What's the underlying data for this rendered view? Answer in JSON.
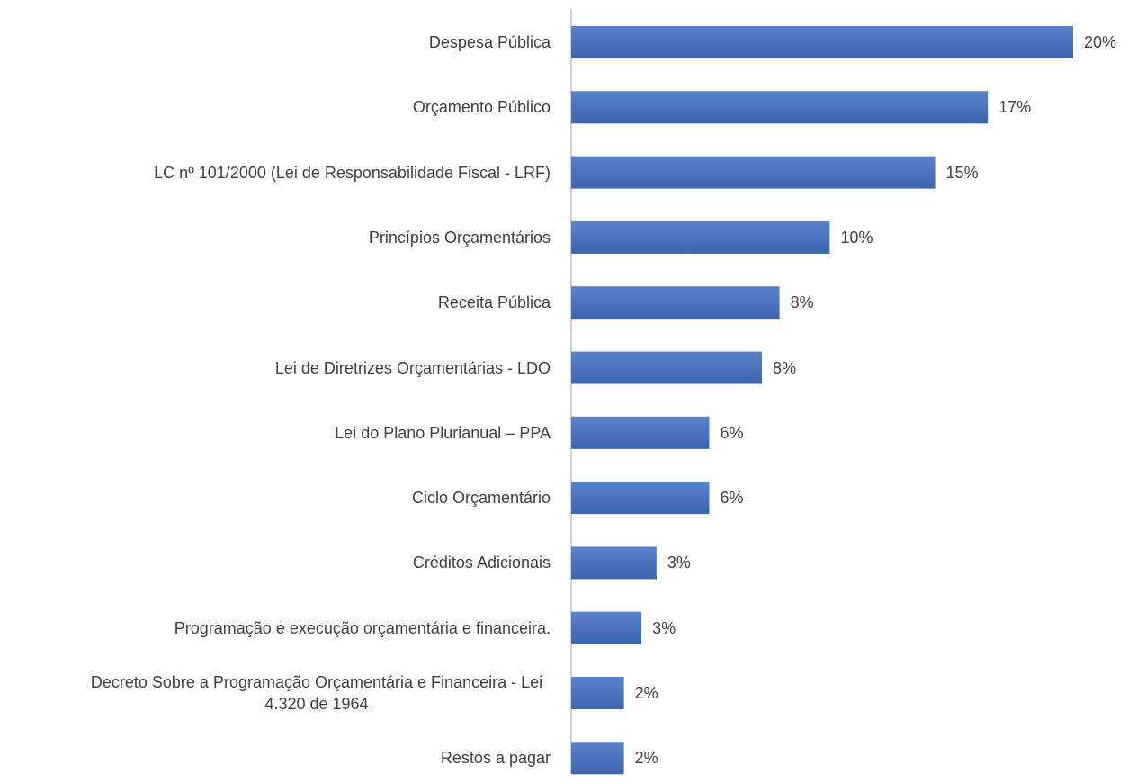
{
  "chart_data": {
    "type": "barh",
    "categories": [
      "Despesa Pública",
      "Orçamento Público",
      "LC nº 101/2000 (Lei de Responsabilidade Fiscal - LRF)",
      "Princípios Orçamentários",
      "Receita Pública",
      "Lei de Diretrizes Orçamentárias - LDO",
      "Lei do Plano Plurianual – PPA",
      "Ciclo Orçamentário",
      "Créditos Adicionais",
      "Programação e execução orçamentária e financeira.",
      "Decreto Sobre a Programação Orçamentária e Financeira - Lei 4.320 de 1964",
      "Restos a pagar"
    ],
    "values": [
      20,
      16.6,
      14.5,
      10.3,
      8.3,
      7.6,
      5.5,
      5.5,
      3.4,
      2.8,
      2.1,
      2.1
    ],
    "value_labels": [
      "20%",
      "17%",
      "15%",
      "10%",
      "8%",
      "8%",
      "6%",
      "6%",
      "3%",
      "3%",
      "2%",
      "2%"
    ],
    "color": "#4472c4"
  }
}
